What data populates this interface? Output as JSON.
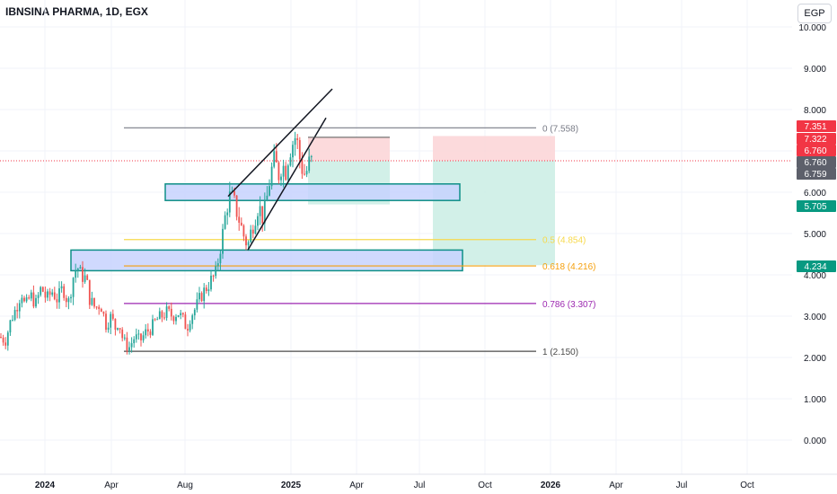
{
  "header": {
    "title": "IBNSINA PHARMA, 1D, EGX",
    "currency": "EGP"
  },
  "colors": {
    "up": "#26a69a",
    "down": "#ef5350",
    "grid": "#f0f3fa",
    "axis_text": "#131722",
    "zone_fill": "#c7d2fe",
    "zone_stroke": "#0e8f87",
    "short_stop": "#fbd3d6",
    "short_target": "#cdeee6"
  },
  "chart_data": {
    "type": "candlestick",
    "y_axis": {
      "ticks": [
        "10.000",
        "9.000",
        "8.000",
        "7.000",
        "6.000",
        "5.000",
        "4.000",
        "3.000",
        "2.000",
        "1.000",
        "0.000"
      ],
      "range": [
        -0.45,
        10.6
      ]
    },
    "x_axis": {
      "ticks": [
        {
          "label": "2024",
          "bold": true
        },
        {
          "label": "Apr",
          "bold": false
        },
        {
          "label": "Aug",
          "bold": false
        },
        {
          "label": "2025",
          "bold": true
        },
        {
          "label": "Apr",
          "bold": false
        },
        {
          "label": "Jul",
          "bold": false
        },
        {
          "label": "Oct",
          "bold": false
        },
        {
          "label": "2026",
          "bold": true
        },
        {
          "label": "Apr",
          "bold": false
        },
        {
          "label": "Jul",
          "bold": false
        },
        {
          "label": "Oct",
          "bold": false
        }
      ]
    },
    "fib_levels": [
      {
        "label": "0 (7.558)",
        "value": 7.558,
        "color": "#787b86"
      },
      {
        "label": "0.5 (4.854)",
        "value": 4.854,
        "color": "#f7d94c"
      },
      {
        "label": "0.618 (4.216)",
        "value": 4.216,
        "color": "#f59f0b"
      },
      {
        "label": "0.786 (3.307)",
        "value": 3.307,
        "color": "#9c27b0"
      },
      {
        "label": "1 (2.150)",
        "value": 2.15,
        "color": "#4a4a4a"
      }
    ],
    "price_tags": [
      {
        "label": "7.351",
        "value": 7.351,
        "color": "#f23645"
      },
      {
        "label": "7.322",
        "value": 7.322,
        "color": "#f23645"
      },
      {
        "label": "6.760",
        "value": 6.76,
        "color": "#f23645"
      },
      {
        "label": "6.760",
        "value": 6.76,
        "color": "#5d606b"
      },
      {
        "label": "6.759",
        "value": 6.759,
        "color": "#5d606b"
      },
      {
        "label": "5.705",
        "value": 5.705,
        "color": "#089981"
      },
      {
        "label": "4.234",
        "value": 4.234,
        "color": "#089981"
      }
    ],
    "last_price": 6.76,
    "zones": [
      {
        "name": "upper-demand-zone",
        "y_low": 5.8,
        "y_high": 6.2
      },
      {
        "name": "lower-demand-zone",
        "y_low": 4.1,
        "y_high": 4.6
      }
    ],
    "short_positions": [
      {
        "name": "short-position-1",
        "entry": 6.76,
        "stop": 7.33,
        "target": 5.705
      },
      {
        "name": "short-position-2",
        "entry": 6.76,
        "stop": 7.36,
        "target": 4.234
      }
    ],
    "wedge_lines": [
      {
        "name": "wedge-upper-line",
        "from": [
          0,
          5.9
        ],
        "to": [
          1,
          8.5
        ]
      },
      {
        "name": "wedge-lower-line",
        "from": [
          0,
          4.6
        ],
        "to": [
          1,
          7.8
        ]
      }
    ],
    "price_path": [
      [
        0,
        2.5
      ],
      [
        6,
        2.4
      ],
      [
        12,
        2.9
      ],
      [
        18,
        3.2
      ],
      [
        24,
        3.6
      ],
      [
        28,
        3.2
      ],
      [
        34,
        3.5
      ],
      [
        40,
        3.3
      ],
      [
        46,
        3.7
      ],
      [
        52,
        3.4
      ],
      [
        58,
        3.6
      ],
      [
        64,
        3.4
      ],
      [
        70,
        3.7
      ],
      [
        76,
        3.3
      ],
      [
        82,
        4.0
      ],
      [
        86,
        4.2
      ],
      [
        90,
        4.0
      ],
      [
        96,
        3.9
      ],
      [
        100,
        3.4
      ],
      [
        106,
        3.2
      ],
      [
        112,
        3.3
      ],
      [
        118,
        2.8
      ],
      [
        124,
        3.0
      ],
      [
        128,
        2.7
      ],
      [
        132,
        2.9
      ],
      [
        136,
        2.5
      ],
      [
        140,
        2.3
      ],
      [
        144,
        2.25
      ],
      [
        150,
        2.5
      ],
      [
        156,
        2.4
      ],
      [
        162,
        2.6
      ],
      [
        168,
        2.7
      ],
      [
        174,
        2.9
      ],
      [
        180,
        3.0
      ],
      [
        186,
        3.1
      ],
      [
        192,
        3.0
      ],
      [
        198,
        3.1
      ],
      [
        204,
        2.9
      ],
      [
        208,
        2.7
      ],
      [
        212,
        3.0
      ],
      [
        218,
        3.2
      ],
      [
        224,
        3.5
      ],
      [
        230,
        3.7
      ],
      [
        236,
        3.9
      ],
      [
        240,
        4.0
      ],
      [
        244,
        4.5
      ],
      [
        248,
        5.0
      ],
      [
        252,
        5.6
      ],
      [
        256,
        5.9
      ],
      [
        260,
        5.8
      ],
      [
        264,
        5.5
      ],
      [
        268,
        5.2
      ],
      [
        272,
        4.9
      ],
      [
        276,
        4.7
      ],
      [
        280,
        5.1
      ],
      [
        284,
        5.4
      ],
      [
        288,
        5.7
      ],
      [
        292,
        5.4
      ],
      [
        296,
        5.6
      ],
      [
        298,
        6.0
      ],
      [
        302,
        6.5
      ],
      [
        306,
        6.8
      ],
      [
        310,
        6.4
      ],
      [
        314,
        6.7
      ],
      [
        318,
        6.5
      ],
      [
        322,
        7.0
      ],
      [
        326,
        7.2
      ],
      [
        330,
        7.4
      ],
      [
        332,
        7.0
      ],
      [
        336,
        6.6
      ],
      [
        340,
        6.4
      ],
      [
        344,
        6.7
      ],
      [
        348,
        6.76
      ]
    ]
  }
}
